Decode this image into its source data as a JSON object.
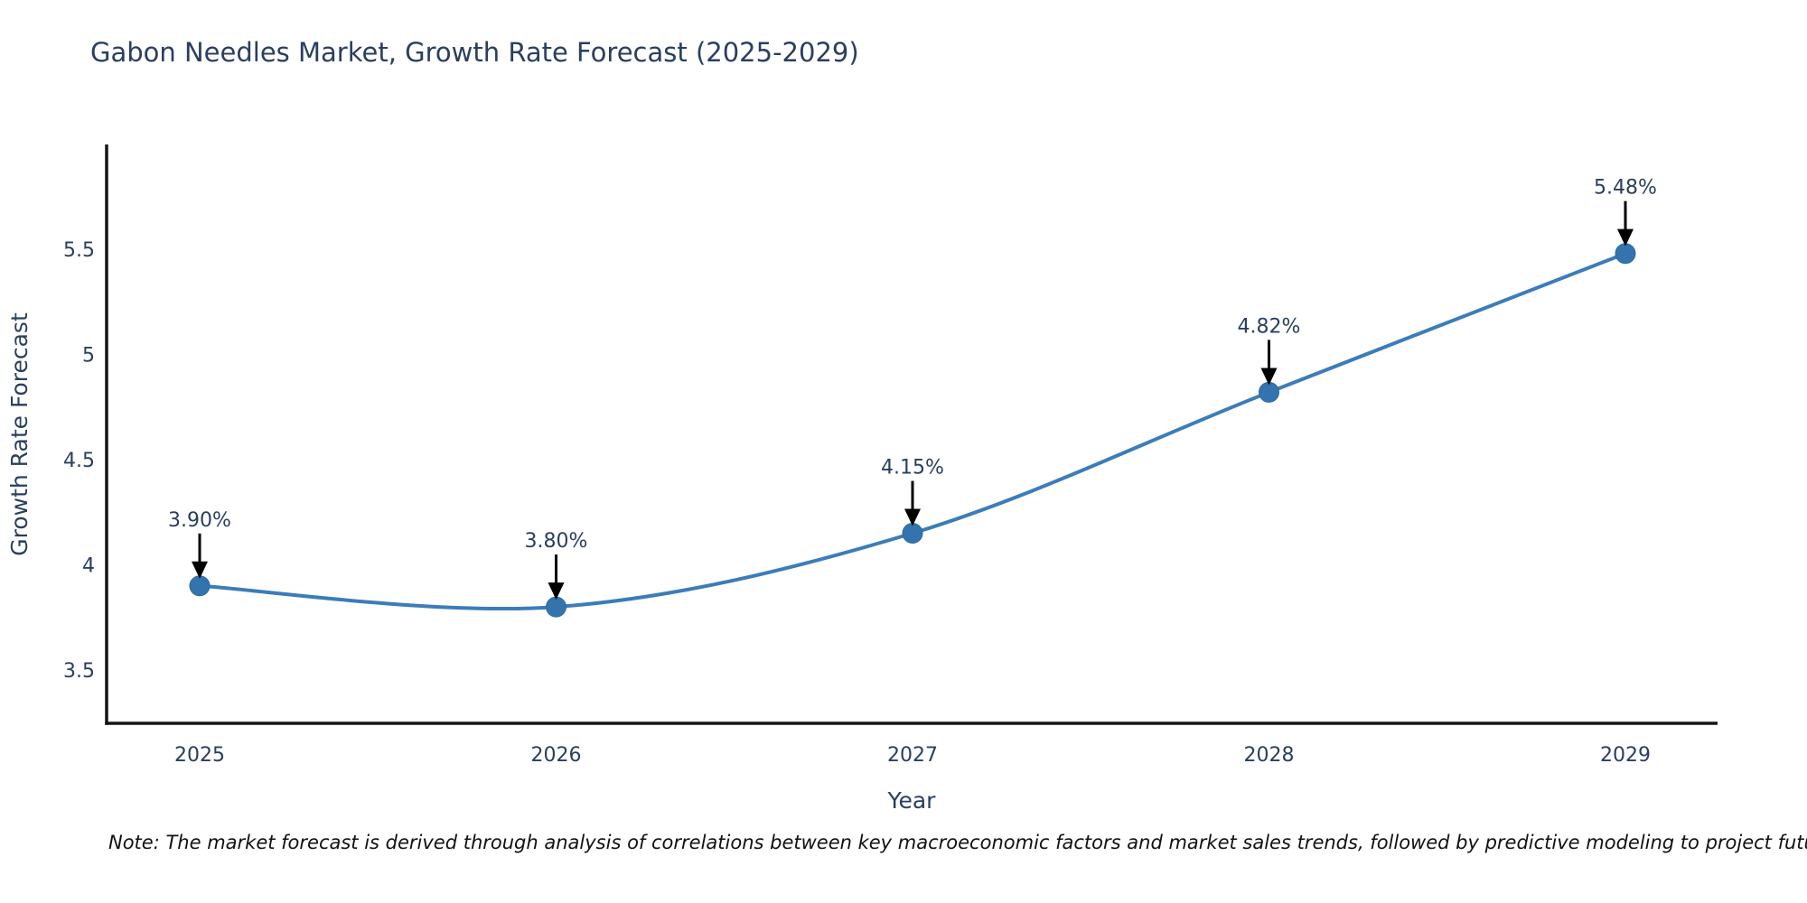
{
  "page": {
    "background": "#ffffff"
  },
  "chart_data": {
    "type": "line",
    "title": "Gabon Needles Market, Growth Rate Forecast (2025-2029)",
    "xlabel": "Year",
    "ylabel": "Growth Rate Forecast",
    "categories": [
      2025,
      2026,
      2027,
      2028,
      2029
    ],
    "x_tick_labels": [
      "2025",
      "2026",
      "2027",
      "2028",
      "2029"
    ],
    "series": [
      {
        "name": "Growth Rate Forecast",
        "values": [
          3.9,
          3.8,
          4.15,
          4.82,
          5.48
        ],
        "point_labels": [
          "3.90%",
          "3.80%",
          "4.15%",
          "4.82%",
          "5.48%"
        ]
      }
    ],
    "y_ticks": [
      3.5,
      4,
      4.5,
      5,
      5.5
    ],
    "y_tick_labels": [
      "3.5",
      "4",
      "4.5",
      "5",
      "5.5"
    ],
    "ylim": [
      3.25,
      6.0
    ],
    "grid": false,
    "legend_position": "none",
    "line_shape": "spline",
    "annotations_have_arrows": true,
    "colors": {
      "line": "#3c7cb9",
      "marker": "#3374ae",
      "marker_edge": "#2f6a9e",
      "axis_line": "#151515",
      "text": "#2a3f5f",
      "annotation_arrow": "#000000",
      "footnote_text": "#111111"
    }
  },
  "note": "Note: The market forecast is derived through analysis of correlations between key macroeconomic factors and market sales trends, followed by predictive modeling to project future sales"
}
